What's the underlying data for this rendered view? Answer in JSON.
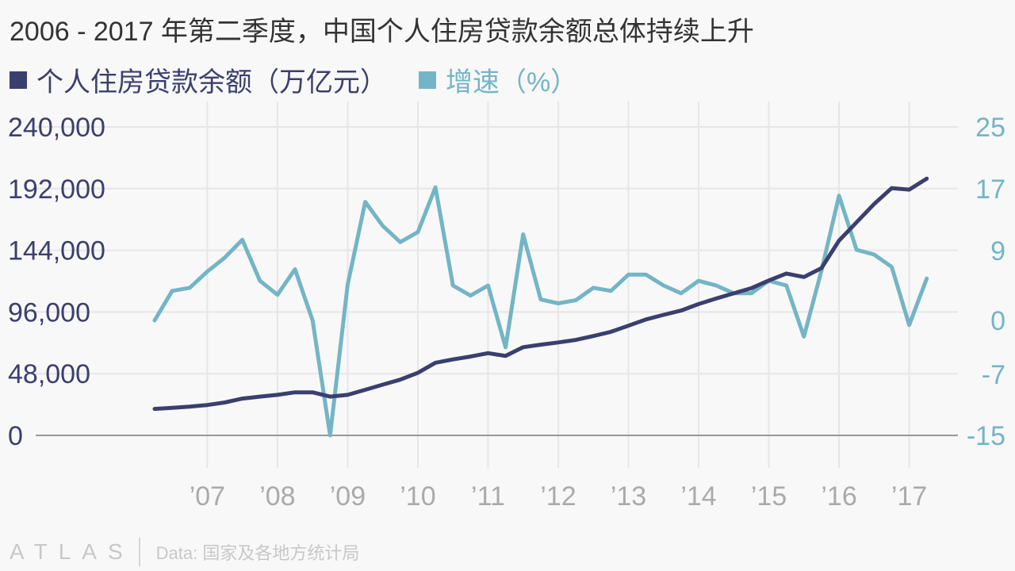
{
  "title": "2006 - 2017 年第二季度，中国个人住房贷款余额总体持续上升",
  "legend": [
    {
      "label": "个人住房贷款余额（万亿元）",
      "color": "#3b3f6e"
    },
    {
      "label": "增速（%）",
      "color": "#74b5c5"
    }
  ],
  "footer": {
    "logo": "ATLAS",
    "source": "Data: 国家及各地方统计局"
  },
  "chart_data": {
    "type": "line",
    "x_tick_labels": [
      "’07",
      "’08",
      "’09",
      "’10",
      "’11",
      "’12",
      "’13",
      "’14",
      "’15",
      "’16",
      "’17"
    ],
    "y_left": {
      "ticks": [
        "240,000",
        "192,000",
        "144,000",
        "96,000",
        "48,000",
        "0"
      ],
      "range": [
        0,
        240000
      ],
      "color": "#3b3f6e"
    },
    "y_right": {
      "ticks": [
        "25",
        "17",
        "9",
        "0",
        "-7",
        "-15"
      ],
      "range": [
        -15,
        25
      ],
      "color": "#74b5c5"
    },
    "grid": true,
    "x": [
      "2006Q2",
      "2006Q3",
      "2006Q4",
      "2007Q1",
      "2007Q2",
      "2007Q3",
      "2007Q4",
      "2008Q1",
      "2008Q2",
      "2008Q3",
      "2008Q4",
      "2009Q1",
      "2009Q2",
      "2009Q3",
      "2009Q4",
      "2010Q1",
      "2010Q2",
      "2010Q3",
      "2010Q4",
      "2011Q1",
      "2011Q2",
      "2011Q3",
      "2011Q4",
      "2012Q1",
      "2012Q2",
      "2012Q3",
      "2012Q4",
      "2013Q1",
      "2013Q2",
      "2013Q3",
      "2013Q4",
      "2014Q1",
      "2014Q2",
      "2014Q3",
      "2014Q4",
      "2015Q1",
      "2015Q2",
      "2015Q3",
      "2015Q4",
      "2016Q1",
      "2016Q2",
      "2016Q3",
      "2016Q4",
      "2017Q1",
      "2017Q2"
    ],
    "series": [
      {
        "name": "个人住房贷款余额（万亿元）",
        "axis": "left",
        "color": "#3b3f6e",
        "values": [
          20600,
          21500,
          22400,
          23600,
          25600,
          28600,
          30200,
          31500,
          33500,
          33500,
          30200,
          31500,
          35500,
          39500,
          43400,
          48700,
          56500,
          59100,
          61300,
          64000,
          61800,
          68600,
          70600,
          72300,
          74300,
          77300,
          80600,
          85300,
          90200,
          93800,
          97100,
          102200,
          106500,
          110500,
          114500,
          120500,
          125900,
          123200,
          130100,
          151500,
          165800,
          180000,
          192400,
          191200,
          199800
        ]
      },
      {
        "name": "增速（%）",
        "axis": "right",
        "color": "#74b5c5",
        "values": [
          0,
          3.8,
          4.2,
          6.3,
          8.1,
          10.4,
          5.1,
          3.3,
          6.6,
          0,
          -15,
          4.6,
          15.3,
          12.2,
          10.1,
          11.4,
          17.2,
          4.5,
          3.2,
          4.5,
          -3.5,
          11.1,
          2.7,
          2.2,
          2.6,
          4.2,
          3.8,
          5.9,
          5.9,
          4.5,
          3.5,
          5.1,
          4.5,
          3.5,
          3.5,
          5.1,
          4.5,
          -2.1,
          6.4,
          16.1,
          9.1,
          8.5,
          6.9,
          -0.6,
          5.4
        ]
      }
    ]
  }
}
